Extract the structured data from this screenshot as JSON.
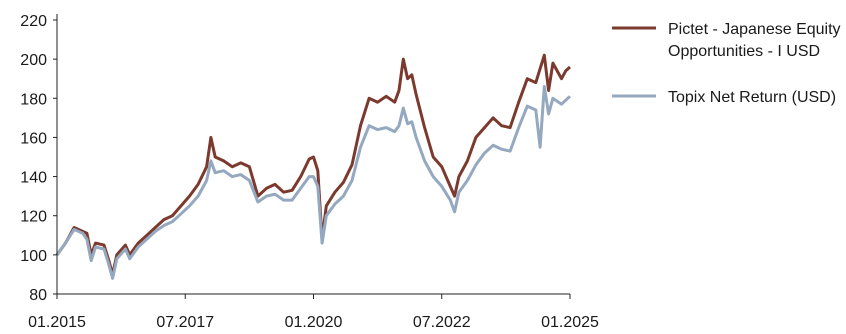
{
  "chart_data": {
    "type": "line",
    "title": "",
    "xlabel": "",
    "ylabel": "",
    "ylim": [
      80,
      220
    ],
    "yticks": [
      80,
      100,
      120,
      140,
      160,
      180,
      200,
      220
    ],
    "xticks": [
      "01.2015",
      "07.2017",
      "01.2020",
      "07.2022",
      "01.2025"
    ],
    "grid": false,
    "legend_position": "right",
    "x_unit": "month (01.2015 to 01.2025)",
    "series": [
      {
        "name_lines": [
          "Pictet - Japanese Equity",
          "Opportunities - I USD"
        ],
        "color": "#7b3a2d",
        "points": [
          [
            "01.2015",
            100
          ],
          [
            "03.2015",
            106
          ],
          [
            "05.2015",
            114
          ],
          [
            "07.2015",
            112
          ],
          [
            "08.2015",
            111
          ],
          [
            "09.2015",
            100
          ],
          [
            "10.2015",
            106
          ],
          [
            "12.2015",
            105
          ],
          [
            "01.2016",
            98
          ],
          [
            "02.2016",
            90
          ],
          [
            "03.2016",
            100
          ],
          [
            "05.2016",
            105
          ],
          [
            "06.2016",
            100
          ],
          [
            "08.2016",
            106
          ],
          [
            "10.2016",
            110
          ],
          [
            "12.2016",
            114
          ],
          [
            "02.2017",
            118
          ],
          [
            "04.2017",
            120
          ],
          [
            "06.2017",
            125
          ],
          [
            "08.2017",
            130
          ],
          [
            "10.2017",
            136
          ],
          [
            "12.2017",
            145
          ],
          [
            "01.2018",
            160
          ],
          [
            "02.2018",
            150
          ],
          [
            "04.2018",
            148
          ],
          [
            "06.2018",
            145
          ],
          [
            "08.2018",
            147
          ],
          [
            "10.2018",
            145
          ],
          [
            "12.2018",
            130
          ],
          [
            "02.2019",
            134
          ],
          [
            "04.2019",
            136
          ],
          [
            "06.2019",
            132
          ],
          [
            "08.2019",
            133
          ],
          [
            "10.2019",
            140
          ],
          [
            "12.2019",
            149
          ],
          [
            "01.2020",
            150
          ],
          [
            "02.2020",
            143
          ],
          [
            "03.2020",
            108
          ],
          [
            "04.2020",
            125
          ],
          [
            "06.2020",
            132
          ],
          [
            "08.2020",
            137
          ],
          [
            "10.2020",
            146
          ],
          [
            "12.2020",
            166
          ],
          [
            "02.2021",
            180
          ],
          [
            "04.2021",
            178
          ],
          [
            "06.2021",
            181
          ],
          [
            "08.2021",
            178
          ],
          [
            "09.2021",
            184
          ],
          [
            "10.2021",
            200
          ],
          [
            "11.2021",
            190
          ],
          [
            "12.2021",
            192
          ],
          [
            "01.2022",
            182
          ],
          [
            "03.2022",
            165
          ],
          [
            "05.2022",
            150
          ],
          [
            "07.2022",
            145
          ],
          [
            "09.2022",
            135
          ],
          [
            "10.2022",
            130
          ],
          [
            "11.2022",
            140
          ],
          [
            "01.2023",
            148
          ],
          [
            "03.2023",
            160
          ],
          [
            "05.2023",
            165
          ],
          [
            "07.2023",
            170
          ],
          [
            "09.2023",
            166
          ],
          [
            "11.2023",
            165
          ],
          [
            "01.2024",
            178
          ],
          [
            "03.2024",
            190
          ],
          [
            "05.2024",
            188
          ],
          [
            "07.2024",
            202
          ],
          [
            "08.2024",
            184
          ],
          [
            "09.2024",
            198
          ],
          [
            "11.2024",
            190
          ],
          [
            "12.2024",
            194
          ],
          [
            "01.2025",
            196
          ]
        ]
      },
      {
        "name_lines": [
          "Topix Net Return (USD)"
        ],
        "color": "#94a8c0",
        "points": [
          [
            "01.2015",
            100
          ],
          [
            "03.2015",
            106
          ],
          [
            "05.2015",
            113
          ],
          [
            "07.2015",
            111
          ],
          [
            "08.2015",
            108
          ],
          [
            "09.2015",
            97
          ],
          [
            "10.2015",
            104
          ],
          [
            "12.2015",
            103
          ],
          [
            "01.2016",
            96
          ],
          [
            "02.2016",
            88
          ],
          [
            "03.2016",
            98
          ],
          [
            "05.2016",
            103
          ],
          [
            "06.2016",
            98
          ],
          [
            "08.2016",
            104
          ],
          [
            "10.2016",
            108
          ],
          [
            "12.2016",
            112
          ],
          [
            "02.2017",
            115
          ],
          [
            "04.2017",
            117
          ],
          [
            "06.2017",
            121
          ],
          [
            "08.2017",
            125
          ],
          [
            "10.2017",
            130
          ],
          [
            "12.2017",
            138
          ],
          [
            "01.2018",
            148
          ],
          [
            "02.2018",
            142
          ],
          [
            "04.2018",
            143
          ],
          [
            "06.2018",
            140
          ],
          [
            "08.2018",
            141
          ],
          [
            "10.2018",
            138
          ],
          [
            "12.2018",
            127
          ],
          [
            "02.2019",
            130
          ],
          [
            "04.2019",
            131
          ],
          [
            "06.2019",
            128
          ],
          [
            "08.2019",
            128
          ],
          [
            "10.2019",
            134
          ],
          [
            "12.2019",
            140
          ],
          [
            "01.2020",
            140
          ],
          [
            "02.2020",
            135
          ],
          [
            "03.2020",
            106
          ],
          [
            "04.2020",
            120
          ],
          [
            "06.2020",
            126
          ],
          [
            "08.2020",
            130
          ],
          [
            "10.2020",
            138
          ],
          [
            "12.2020",
            155
          ],
          [
            "02.2021",
            166
          ],
          [
            "04.2021",
            164
          ],
          [
            "06.2021",
            165
          ],
          [
            "08.2021",
            163
          ],
          [
            "09.2021",
            166
          ],
          [
            "10.2021",
            175
          ],
          [
            "11.2021",
            167
          ],
          [
            "12.2021",
            168
          ],
          [
            "01.2022",
            160
          ],
          [
            "03.2022",
            148
          ],
          [
            "05.2022",
            140
          ],
          [
            "07.2022",
            135
          ],
          [
            "09.2022",
            128
          ],
          [
            "10.2022",
            122
          ],
          [
            "11.2022",
            132
          ],
          [
            "01.2023",
            138
          ],
          [
            "03.2023",
            146
          ],
          [
            "05.2023",
            152
          ],
          [
            "07.2023",
            156
          ],
          [
            "09.2023",
            154
          ],
          [
            "11.2023",
            153
          ],
          [
            "01.2024",
            165
          ],
          [
            "03.2024",
            176
          ],
          [
            "05.2024",
            174
          ],
          [
            "06.2024",
            155
          ],
          [
            "07.2024",
            186
          ],
          [
            "08.2024",
            172
          ],
          [
            "09.2024",
            180
          ],
          [
            "11.2024",
            177
          ],
          [
            "12.2024",
            179
          ],
          [
            "01.2025",
            181
          ]
        ]
      }
    ]
  }
}
